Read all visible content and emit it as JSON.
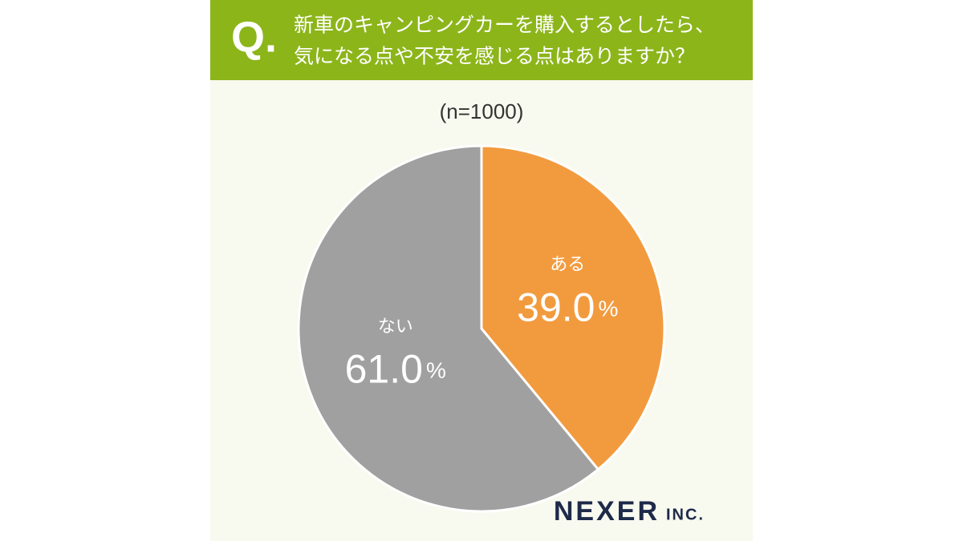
{
  "chart_data": {
    "type": "pie",
    "label": "Q.",
    "title": [
      "新車のキャンピングカーを購入するとしたら、",
      "気になる点や不安を感じる点はありますか？"
    ],
    "subtitle": "(n=1000)",
    "categories": [
      "ある",
      "ない"
    ],
    "values": [
      39.0,
      61.0
    ],
    "value_labels": [
      "39.0%",
      "61.0%"
    ],
    "colors": [
      "#f29b3e",
      "#a0a0a0"
    ],
    "logo": [
      "NEXER",
      "INC."
    ]
  }
}
